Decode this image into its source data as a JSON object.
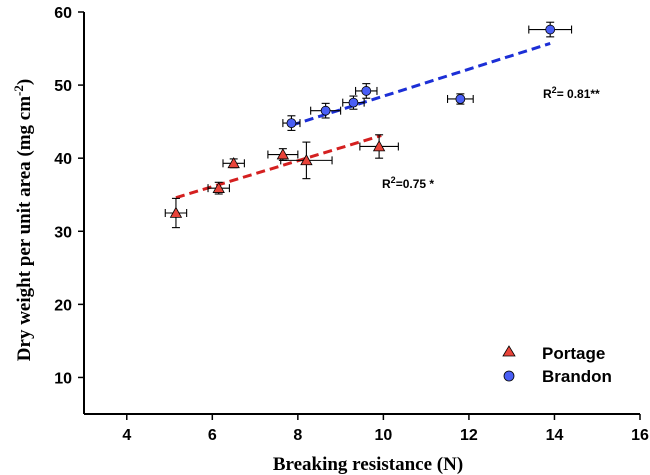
{
  "chart_data": {
    "type": "scatter",
    "xlabel": "Breaking resistance (N)",
    "ylabel_main": "Dry weight per unit area (mg cm",
    "ylabel_sup": "-2",
    "ylabel_end": ")",
    "xlim": [
      3,
      16
    ],
    "ylim": [
      5,
      60
    ],
    "x_ticks": [
      "4",
      "6",
      "8",
      "10",
      "12",
      "14",
      "16"
    ],
    "y_ticks": [
      "10",
      "20",
      "30",
      "40",
      "50",
      "60"
    ],
    "x_tick_values": [
      4,
      6,
      8,
      10,
      12,
      14,
      16
    ],
    "y_tick_values": [
      10,
      20,
      30,
      40,
      50,
      60
    ],
    "grid": false,
    "legend_position": "bottom-right",
    "series": [
      {
        "name": "Portage",
        "marker": "triangle",
        "color": "#e8443a",
        "line_color": "#d42020",
        "points": [
          {
            "x": 5.15,
            "y": 32.5,
            "xerr": 0.25,
            "yerr": 2.0
          },
          {
            "x": 6.15,
            "y": 35.9,
            "xerr": 0.25,
            "yerr": 0.8
          },
          {
            "x": 6.5,
            "y": 39.3,
            "xerr": 0.25,
            "yerr": 0.6
          },
          {
            "x": 7.65,
            "y": 40.5,
            "xerr": 0.35,
            "yerr": 0.8
          },
          {
            "x": 8.2,
            "y": 39.7,
            "xerr": 0.6,
            "yerr": 2.5
          },
          {
            "x": 9.9,
            "y": 41.6,
            "xerr": 0.45,
            "yerr": 1.6
          }
        ],
        "fit": {
          "x": [
            5.15,
            9.95
          ],
          "y": [
            34.6,
            43.1
          ]
        },
        "r2_main": "R",
        "r2_sup": "2",
        "r2_rest": "=0.75 *"
      },
      {
        "name": "Brandon",
        "marker": "circle",
        "color": "#4a5ff5",
        "line_color": "#1c2fd6",
        "points": [
          {
            "x": 7.85,
            "y": 44.8,
            "xerr": 0.2,
            "yerr": 1.0
          },
          {
            "x": 8.65,
            "y": 46.5,
            "xerr": 0.35,
            "yerr": 1.0
          },
          {
            "x": 9.3,
            "y": 47.6,
            "xerr": 0.25,
            "yerr": 0.9
          },
          {
            "x": 9.6,
            "y": 49.2,
            "xerr": 0.25,
            "yerr": 1.0
          },
          {
            "x": 11.8,
            "y": 48.1,
            "xerr": 0.3,
            "yerr": 0.7
          },
          {
            "x": 13.9,
            "y": 57.6,
            "xerr": 0.5,
            "yerr": 1.0
          }
        ],
        "fit": {
          "x": [
            7.85,
            13.9
          ],
          "y": [
            44.5,
            55.7
          ]
        },
        "r2_main": "R",
        "r2_sup": "2",
        "r2_rest": "= 0.81**"
      }
    ]
  }
}
